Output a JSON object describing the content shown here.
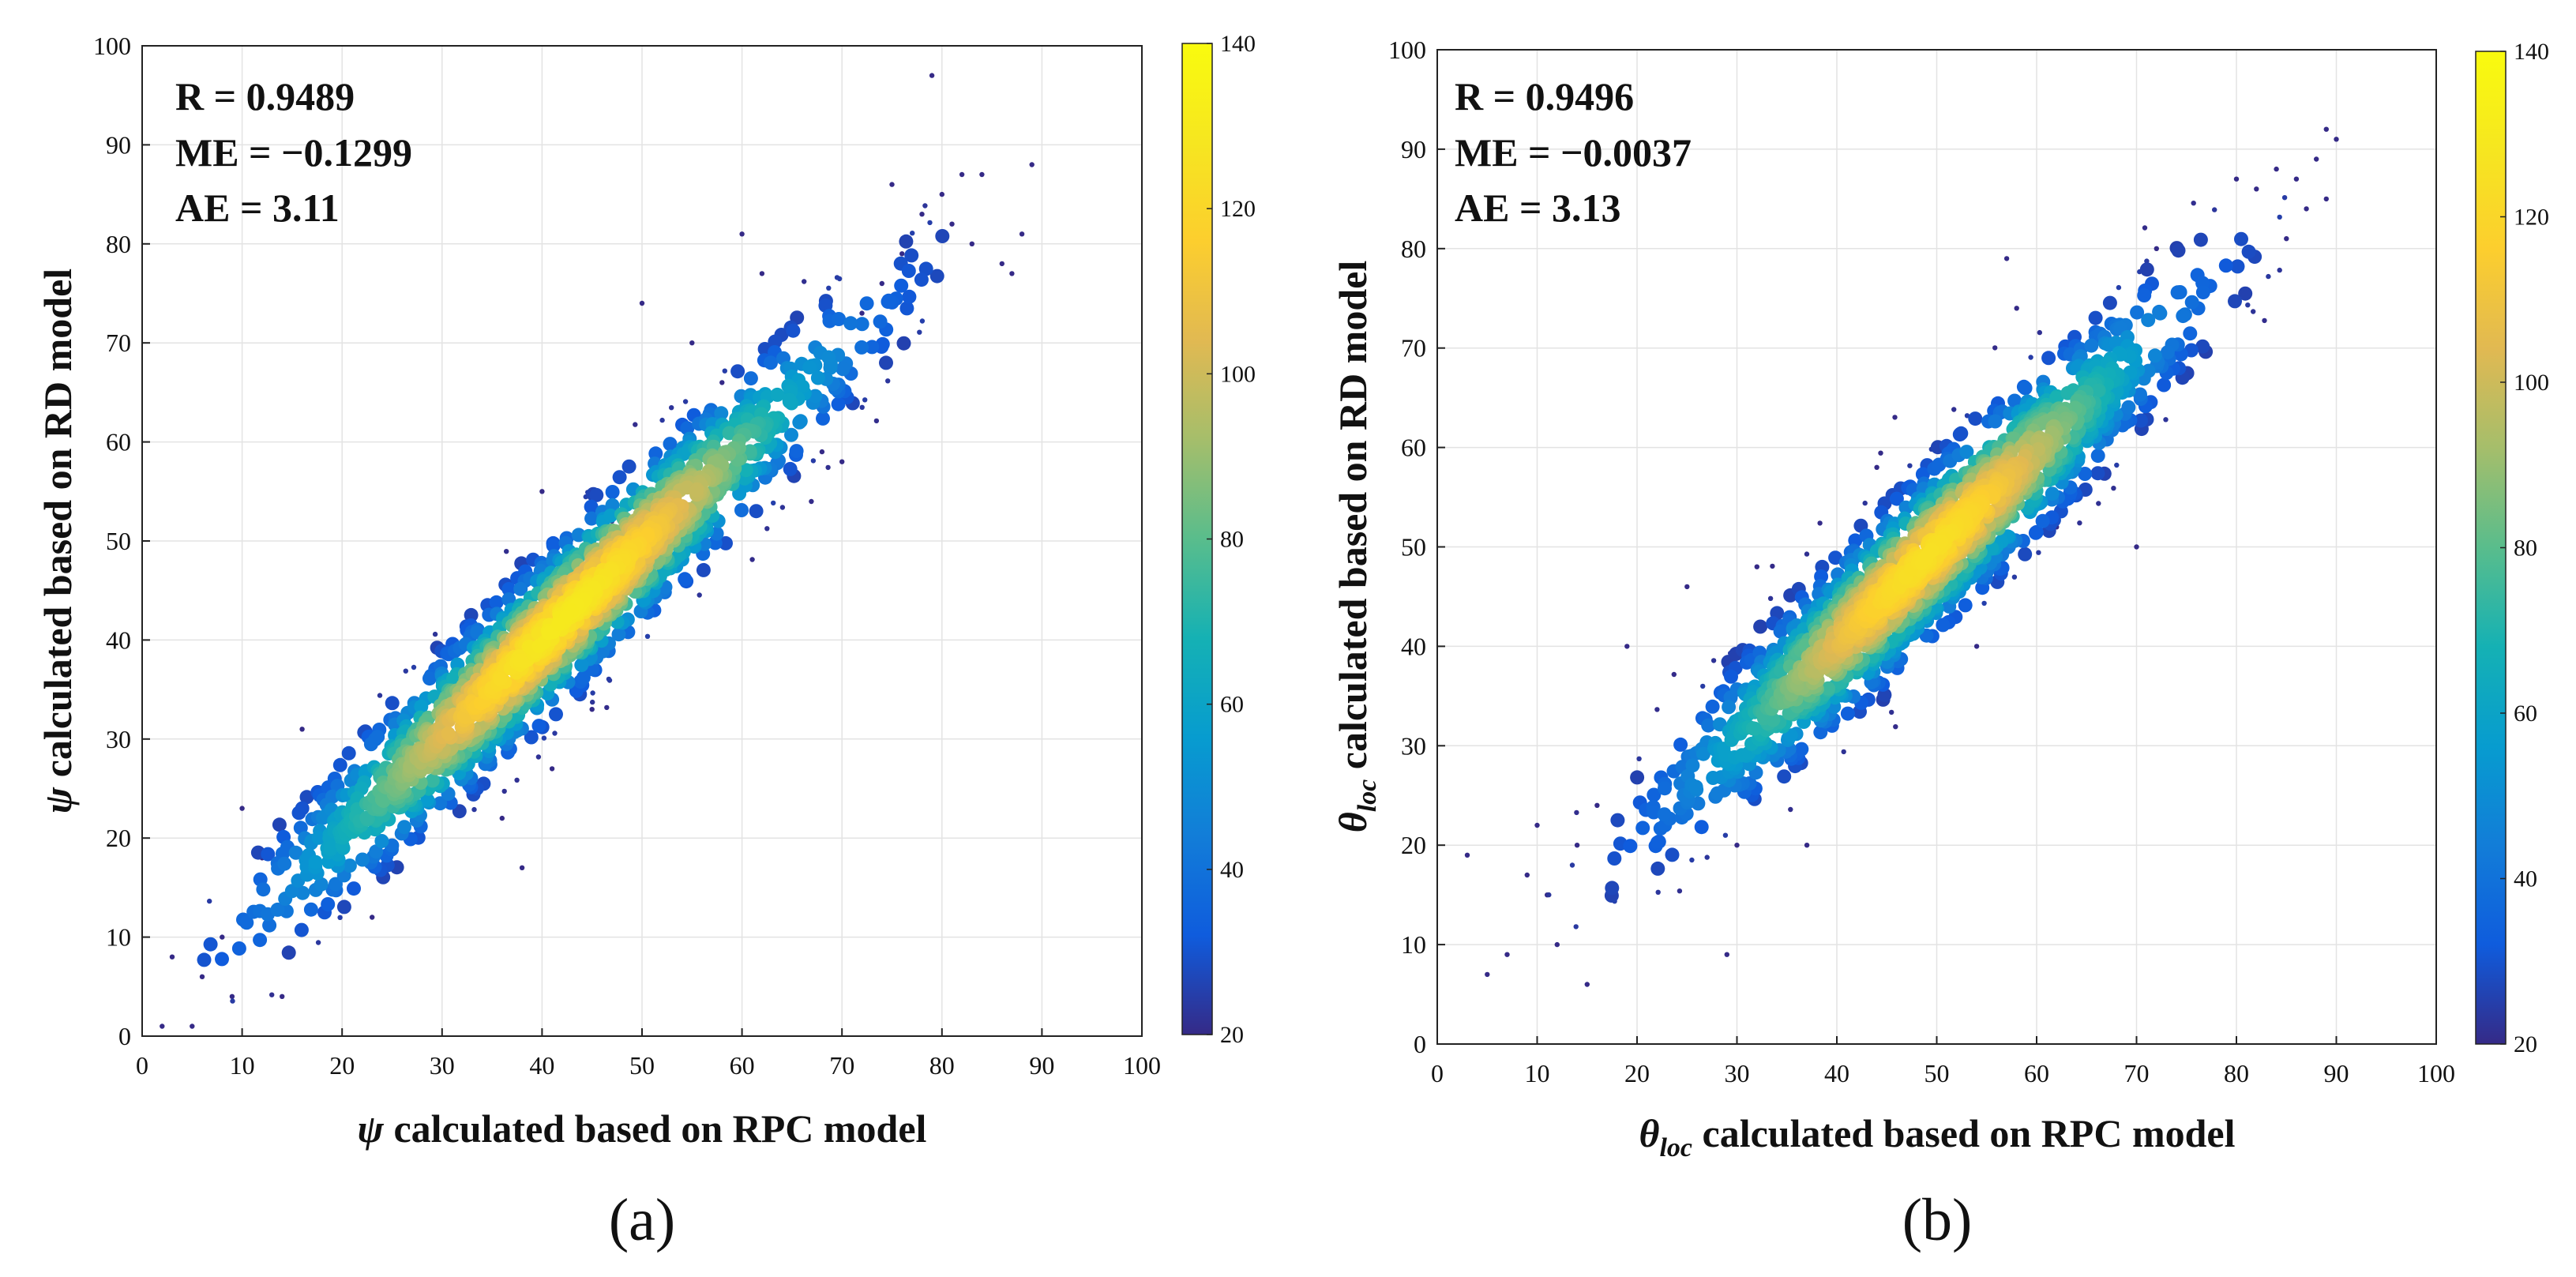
{
  "chart_data": [
    {
      "type": "scatter",
      "subtype": "density-scatter",
      "panel_label": "(a)",
      "xlabel": {
        "symbol": "ψ",
        "subscript": "",
        "text": " calculated based on RPC model"
      },
      "ylabel": {
        "symbol": "ψ",
        "subscript": "",
        "text": " calculated based on RD model"
      },
      "xlim": [
        0,
        100
      ],
      "ylim": [
        0,
        100
      ],
      "xticks": [
        0,
        10,
        20,
        30,
        40,
        50,
        60,
        70,
        80,
        90,
        100
      ],
      "yticks": [
        0,
        10,
        20,
        30,
        40,
        50,
        60,
        70,
        80,
        90,
        100
      ],
      "grid": true,
      "stats": [
        "R = 0.9489",
        "ME = −0.1299",
        "AE = 3.11"
      ],
      "colorbar": {
        "range": [
          20,
          140
        ],
        "ticks": [
          20,
          40,
          60,
          80,
          100,
          120,
          140
        ],
        "colormap": "parula"
      },
      "density_peak": [
        42,
        42
      ],
      "peak_density": 130,
      "spread_along": 23,
      "spread_across": 2.9,
      "x_range_core": [
        10,
        75
      ],
      "outliers": [
        [
          2,
          1
        ],
        [
          5,
          1
        ],
        [
          3,
          8
        ],
        [
          6,
          6
        ],
        [
          8,
          10
        ],
        [
          9,
          4
        ],
        [
          12,
          18
        ],
        [
          10,
          23
        ],
        [
          14,
          4
        ],
        [
          16,
          31
        ],
        [
          38,
          17
        ],
        [
          40,
          55
        ],
        [
          50,
          74
        ],
        [
          55,
          70
        ],
        [
          60,
          81
        ],
        [
          62,
          77
        ],
        [
          68,
          59
        ],
        [
          70,
          58
        ],
        [
          72,
          73
        ],
        [
          74,
          76
        ],
        [
          75,
          86
        ],
        [
          76,
          79
        ],
        [
          78,
          83
        ],
        [
          79,
          97
        ],
        [
          80,
          85
        ],
        [
          81,
          82
        ],
        [
          82,
          87
        ],
        [
          83,
          80
        ],
        [
          84,
          87
        ],
        [
          86,
          78
        ],
        [
          87,
          77
        ],
        [
          88,
          81
        ],
        [
          89,
          88
        ],
        [
          33,
          40
        ],
        [
          29,
          36
        ],
        [
          26,
          28
        ],
        [
          23,
          12
        ],
        [
          41,
          27
        ],
        [
          45,
          33
        ],
        [
          47,
          52
        ],
        [
          36,
          22
        ],
        [
          58,
          66
        ]
      ]
    },
    {
      "type": "scatter",
      "subtype": "density-scatter",
      "panel_label": "(b)",
      "xlabel": {
        "symbol": "θ",
        "subscript": "loc",
        "text": " calculated based on RPC model"
      },
      "ylabel": {
        "symbol": "θ",
        "subscript": "loc",
        "text": " calculated based on RD model"
      },
      "xlim": [
        0,
        100
      ],
      "ylim": [
        0,
        100
      ],
      "xticks": [
        0,
        10,
        20,
        30,
        40,
        50,
        60,
        70,
        80,
        90,
        100
      ],
      "yticks": [
        0,
        10,
        20,
        30,
        40,
        50,
        60,
        70,
        80,
        90,
        100
      ],
      "grid": true,
      "stats": [
        "R = 0.9496",
        "ME = −0.0037",
        "AE = 3.13"
      ],
      "colorbar": {
        "range": [
          20,
          140
        ],
        "ticks": [
          20,
          40,
          60,
          80,
          100,
          120,
          140
        ],
        "colormap": "parula"
      },
      "density_peak": [
        49,
        49
      ],
      "peak_density": 125,
      "spread_along": 20,
      "spread_across": 3.0,
      "x_range_core": [
        15,
        85
      ],
      "outliers": [
        [
          3,
          19
        ],
        [
          5,
          7
        ],
        [
          7,
          9
        ],
        [
          9,
          17
        ],
        [
          10,
          22
        ],
        [
          11,
          15
        ],
        [
          12,
          10
        ],
        [
          14,
          20
        ],
        [
          15,
          6
        ],
        [
          16,
          24
        ],
        [
          29,
          9
        ],
        [
          30,
          20
        ],
        [
          37,
          20
        ],
        [
          44,
          58
        ],
        [
          57,
          79
        ],
        [
          58,
          74
        ],
        [
          70,
          50
        ],
        [
          72,
          80
        ],
        [
          80,
          87
        ],
        [
          82,
          86
        ],
        [
          84,
          88
        ],
        [
          85,
          81
        ],
        [
          86,
          87
        ],
        [
          87,
          84
        ],
        [
          88,
          89
        ],
        [
          89,
          92
        ],
        [
          89,
          85
        ],
        [
          90,
          91
        ],
        [
          19,
          40
        ],
        [
          25,
          46
        ],
        [
          32,
          48
        ],
        [
          54,
          40
        ],
        [
          62,
          52
        ],
        [
          67,
          62
        ]
      ]
    }
  ]
}
